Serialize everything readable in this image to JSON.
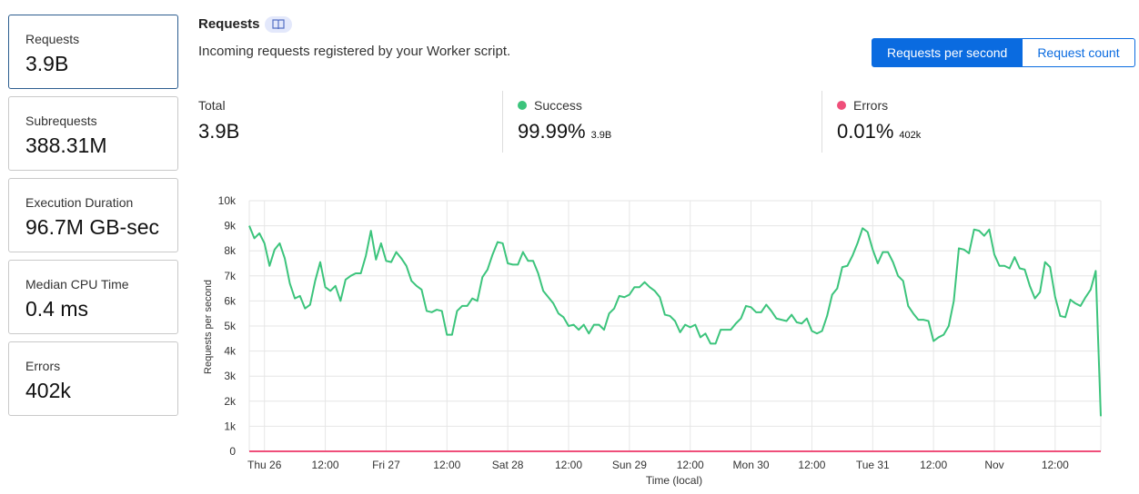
{
  "sidebar": {
    "cards": [
      {
        "label": "Requests",
        "value": "3.9B"
      },
      {
        "label": "Subrequests",
        "value": "388.31M"
      },
      {
        "label": "Execution Duration",
        "value": "96.7M GB-sec"
      },
      {
        "label": "Median CPU Time",
        "value": "0.4 ms"
      },
      {
        "label": "Errors",
        "value": "402k"
      }
    ]
  },
  "header": {
    "title": "Requests",
    "subtitle": "Incoming requests registered by your Worker script.",
    "toggle": {
      "on": "Requests per second",
      "off": "Request count"
    }
  },
  "stats": {
    "total": {
      "label": "Total",
      "value": "3.9B"
    },
    "success": {
      "label": "Success",
      "value": "99.99%",
      "sub": "3.9B",
      "color": "#3cc47c"
    },
    "errors": {
      "label": "Errors",
      "value": "0.01%",
      "sub": "402k",
      "color": "#ef4f7a"
    }
  },
  "chart_data": {
    "type": "line",
    "ylabel": "Requests per second",
    "xlabel": "Time (local)",
    "ylim": [
      0,
      10000
    ],
    "yticks": [
      "0",
      "1k",
      "2k",
      "3k",
      "4k",
      "5k",
      "6k",
      "7k",
      "8k",
      "9k",
      "10k"
    ],
    "xticks": [
      "Thu 26",
      "12:00",
      "Fri 27",
      "12:00",
      "Sat 28",
      "12:00",
      "Sun 29",
      "12:00",
      "Mon 30",
      "12:00",
      "Tue 31",
      "12:00",
      "Nov",
      "12:00"
    ],
    "x_start_hours": -3,
    "x_step_hours": 1,
    "grid": true,
    "series": [
      {
        "name": "Success",
        "color": "#3cc47c",
        "values": [
          9000,
          8500,
          8700,
          8300,
          7400,
          8050,
          8300,
          7700,
          6700,
          6100,
          6200,
          5700,
          5850,
          6800,
          7550,
          6550,
          6400,
          6600,
          6000,
          6850,
          7000,
          7100,
          7100,
          7800,
          8800,
          7650,
          8300,
          7600,
          7550,
          7950,
          7700,
          7400,
          6800,
          6600,
          6450,
          5600,
          5550,
          5650,
          5600,
          4650,
          4650,
          5600,
          5800,
          5800,
          6100,
          6000,
          6950,
          7250,
          7850,
          8350,
          8300,
          7500,
          7450,
          7450,
          7950,
          7600,
          7600,
          7100,
          6400,
          6150,
          5900,
          5500,
          5350,
          5000,
          5050,
          4850,
          5050,
          4700,
          5050,
          5050,
          4850,
          5500,
          5700,
          6200,
          6150,
          6250,
          6550,
          6550,
          6750,
          6550,
          6400,
          6150,
          5450,
          5400,
          5200,
          4750,
          5050,
          4950,
          5050,
          4550,
          4700,
          4300,
          4300,
          4850,
          4850,
          4850,
          5100,
          5300,
          5800,
          5750,
          5550,
          5550,
          5850,
          5600,
          5300,
          5250,
          5200,
          5450,
          5150,
          5100,
          5300,
          4800,
          4700,
          4800,
          5400,
          6250,
          6500,
          7350,
          7400,
          7800,
          8300,
          8900,
          8750,
          8050,
          7500,
          7950,
          7950,
          7550,
          7000,
          6800,
          5800,
          5500,
          5250,
          5250,
          5200,
          4400,
          4550,
          4650,
          5000,
          6000,
          8100,
          8050,
          7900,
          8850,
          8800,
          8600,
          8850,
          7850,
          7400,
          7400,
          7300,
          7750,
          7300,
          7250,
          6600,
          6100,
          6350,
          7550,
          7350,
          6150,
          5400,
          5350,
          6050,
          5900,
          5800,
          6150,
          6450,
          7200,
          1400
        ]
      },
      {
        "name": "Errors",
        "color": "#ef4f7a",
        "values": [
          0,
          0
        ]
      }
    ]
  }
}
